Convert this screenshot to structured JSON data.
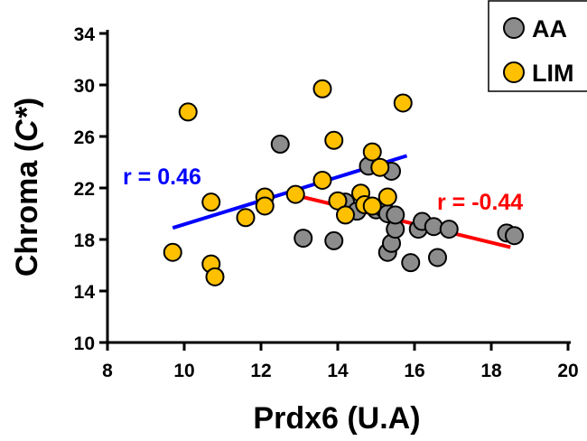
{
  "chart_data": {
    "type": "scatter",
    "xlabel": "Prdx6 (U.A)",
    "ylabel": {
      "prefix": "Chroma (",
      "symbol": "C*",
      "suffix": ")"
    },
    "xlim": [
      8,
      20
    ],
    "ylim": [
      10,
      34
    ],
    "xticks": [
      "8",
      "10",
      "12",
      "14",
      "16",
      "18",
      "20"
    ],
    "yticks": [
      "10",
      "14",
      "18",
      "22",
      "26",
      "30",
      "34"
    ],
    "legend_position": "top-right",
    "series": [
      {
        "name": "AA",
        "color": "#8c8c8c",
        "points": [
          [
            12.5,
            25.4
          ],
          [
            13.1,
            18.1
          ],
          [
            13.9,
            17.9
          ],
          [
            14.2,
            20.9
          ],
          [
            14.5,
            20.2
          ],
          [
            14.8,
            23.7
          ],
          [
            15.0,
            20.3
          ],
          [
            15.2,
            20.4
          ],
          [
            15.3,
            20.0
          ],
          [
            15.3,
            17.0
          ],
          [
            15.4,
            23.3
          ],
          [
            15.4,
            17.7
          ],
          [
            15.5,
            18.8
          ],
          [
            15.5,
            19.9
          ],
          [
            15.9,
            16.2
          ],
          [
            16.1,
            18.8
          ],
          [
            16.2,
            19.4
          ],
          [
            16.5,
            19.0
          ],
          [
            16.6,
            16.6
          ],
          [
            16.9,
            18.8
          ],
          [
            18.4,
            18.5
          ],
          [
            18.6,
            18.3
          ]
        ],
        "trend": {
          "x": [
            12.8,
            18.5
          ],
          "y": [
            21.5,
            17.4
          ],
          "color": "#ff0000",
          "label": "r = -0.44"
        }
      },
      {
        "name": "LIM",
        "color": "#ffc000",
        "points": [
          [
            9.7,
            17.0
          ],
          [
            10.1,
            27.9
          ],
          [
            10.7,
            20.9
          ],
          [
            10.7,
            16.1
          ],
          [
            10.8,
            15.1
          ],
          [
            11.6,
            19.7
          ],
          [
            12.1,
            21.3
          ],
          [
            12.1,
            20.6
          ],
          [
            12.9,
            21.5
          ],
          [
            13.6,
            29.7
          ],
          [
            13.6,
            22.6
          ],
          [
            13.9,
            25.7
          ],
          [
            14.0,
            21.0
          ],
          [
            14.2,
            19.9
          ],
          [
            14.6,
            21.6
          ],
          [
            14.7,
            20.7
          ],
          [
            14.9,
            20.6
          ],
          [
            14.9,
            24.8
          ],
          [
            15.1,
            23.6
          ],
          [
            15.3,
            21.3
          ],
          [
            15.7,
            28.6
          ]
        ],
        "trend": {
          "x": [
            9.7,
            15.8
          ],
          "y": [
            18.9,
            24.5
          ],
          "color": "#0000ff",
          "label": "r = 0.46"
        }
      }
    ]
  }
}
